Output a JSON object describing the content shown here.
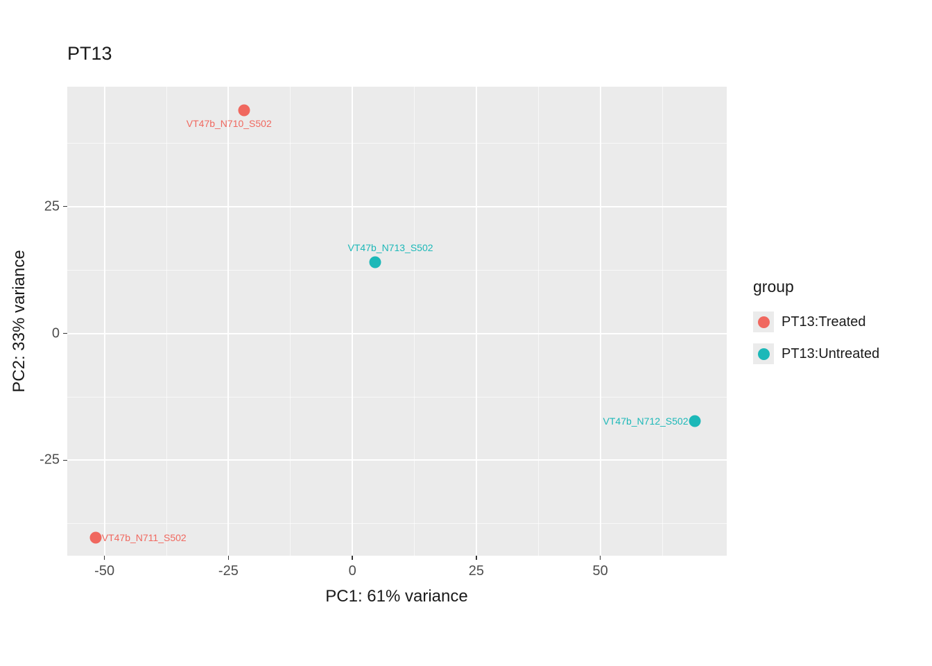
{
  "chart_data": {
    "type": "scatter",
    "title": "PT13",
    "xlabel": "PC1: 61% variance",
    "ylabel": "PC2: 33% variance",
    "xlim": [
      -57.5,
      75.5
    ],
    "ylim": [
      -43.8,
      48.6
    ],
    "x_ticks": [
      -50,
      -25,
      0,
      25,
      50
    ],
    "y_ticks": [
      -25,
      0,
      25
    ],
    "x_minor_gridlines": [
      -37.5,
      -12.5,
      12.5,
      37.5,
      62.5
    ],
    "y_minor_gridlines": [
      -37.5,
      -12.5,
      12.5,
      37.5
    ],
    "grid": true,
    "panel_background": "#EBEBEB",
    "colors": {
      "PT13:Treated": "#F0685F",
      "PT13:Untreated": "#1CB8B8"
    },
    "points": [
      {
        "label": "VT47b_N710_S502",
        "x": -21.8,
        "y": 44.0,
        "group": "PT13:Treated",
        "label_pos": "below",
        "label_dx": -22
      },
      {
        "label": "VT47b_N713_S502",
        "x": 4.6,
        "y": 14.0,
        "group": "PT13:Untreated",
        "label_pos": "above",
        "label_dx": 22
      },
      {
        "label": "VT47b_N712_S502",
        "x": 69.0,
        "y": -17.3,
        "group": "PT13:Untreated",
        "label_pos": "left"
      },
      {
        "label": "VT47b_N711_S502",
        "x": -51.8,
        "y": -40.3,
        "group": "PT13:Treated",
        "label_pos": "right"
      }
    ],
    "legend": {
      "title": "group",
      "position": "right",
      "items": [
        {
          "label": "PT13:Treated",
          "color": "#F0685F"
        },
        {
          "label": "PT13:Untreated",
          "color": "#1CB8B8"
        }
      ]
    }
  }
}
